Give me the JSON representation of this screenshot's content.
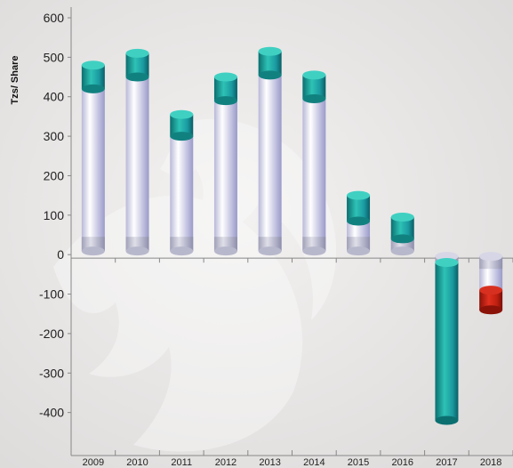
{
  "chart_data": {
    "type": "bar",
    "categories": [
      "2009",
      "2010",
      "2011",
      "2012",
      "2013",
      "2014",
      "2015",
      "2016",
      "2017",
      "2018"
    ],
    "series": [
      {
        "values": [
          480,
          510,
          355,
          450,
          515,
          455,
          150,
          95,
          -420,
          -90
        ]
      },
      {
        "values": [
          420,
          450,
          300,
          390,
          455,
          395,
          85,
          40,
          -20,
          -140
        ]
      }
    ],
    "ylabel": "Tzs/ Share",
    "ylim": [
      -500,
      600
    ],
    "yticks": [
      600,
      500,
      400,
      300,
      200,
      100,
      0,
      -100,
      -200,
      -300,
      -400
    ],
    "grid": false,
    "colors": {
      "tube": "#c5c5e0",
      "tube_light": "#ffffff",
      "tube_dark": "#9a9ac8",
      "cap_positive": "#1fa8a0",
      "cap_positive_dark": "#0b6f70",
      "cap_negative": "#c02010",
      "axis": "#888888"
    }
  }
}
